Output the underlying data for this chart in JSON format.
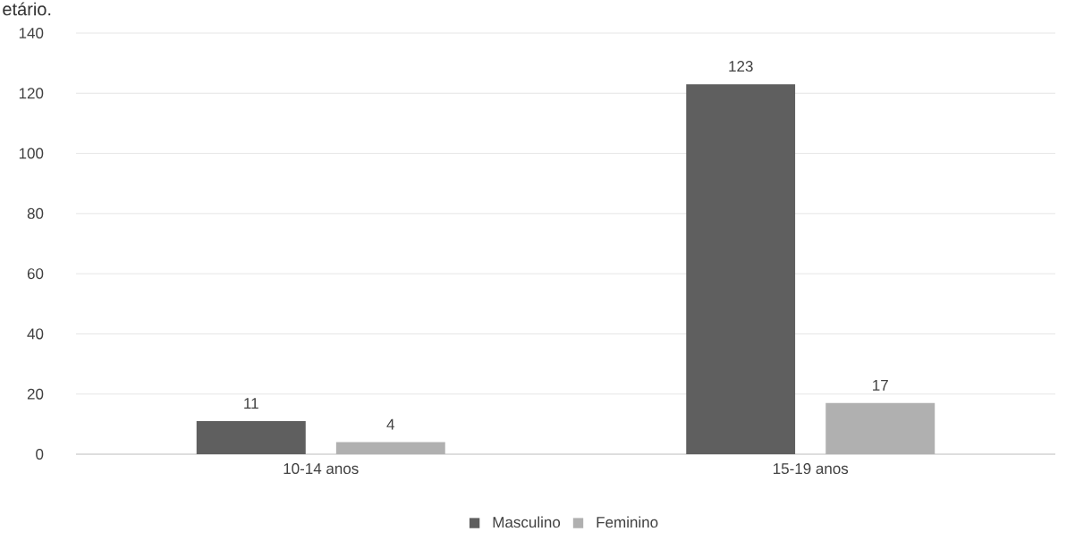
{
  "chart_data": {
    "type": "bar",
    "annotations": [
      "etário."
    ],
    "categories": [
      "10-14 anos",
      "15-19 anos"
    ],
    "series": [
      {
        "name": "Masculino",
        "color": "#5f5f5f",
        "values": [
          11,
          123
        ]
      },
      {
        "name": "Feminino",
        "color": "#b0b0b0",
        "values": [
          4,
          17
        ]
      }
    ],
    "ylim": [
      0,
      140
    ],
    "yticks": [
      0,
      20,
      40,
      60,
      80,
      100,
      120,
      140
    ],
    "grid": "y",
    "legend": "bottom",
    "data_labels": true
  }
}
